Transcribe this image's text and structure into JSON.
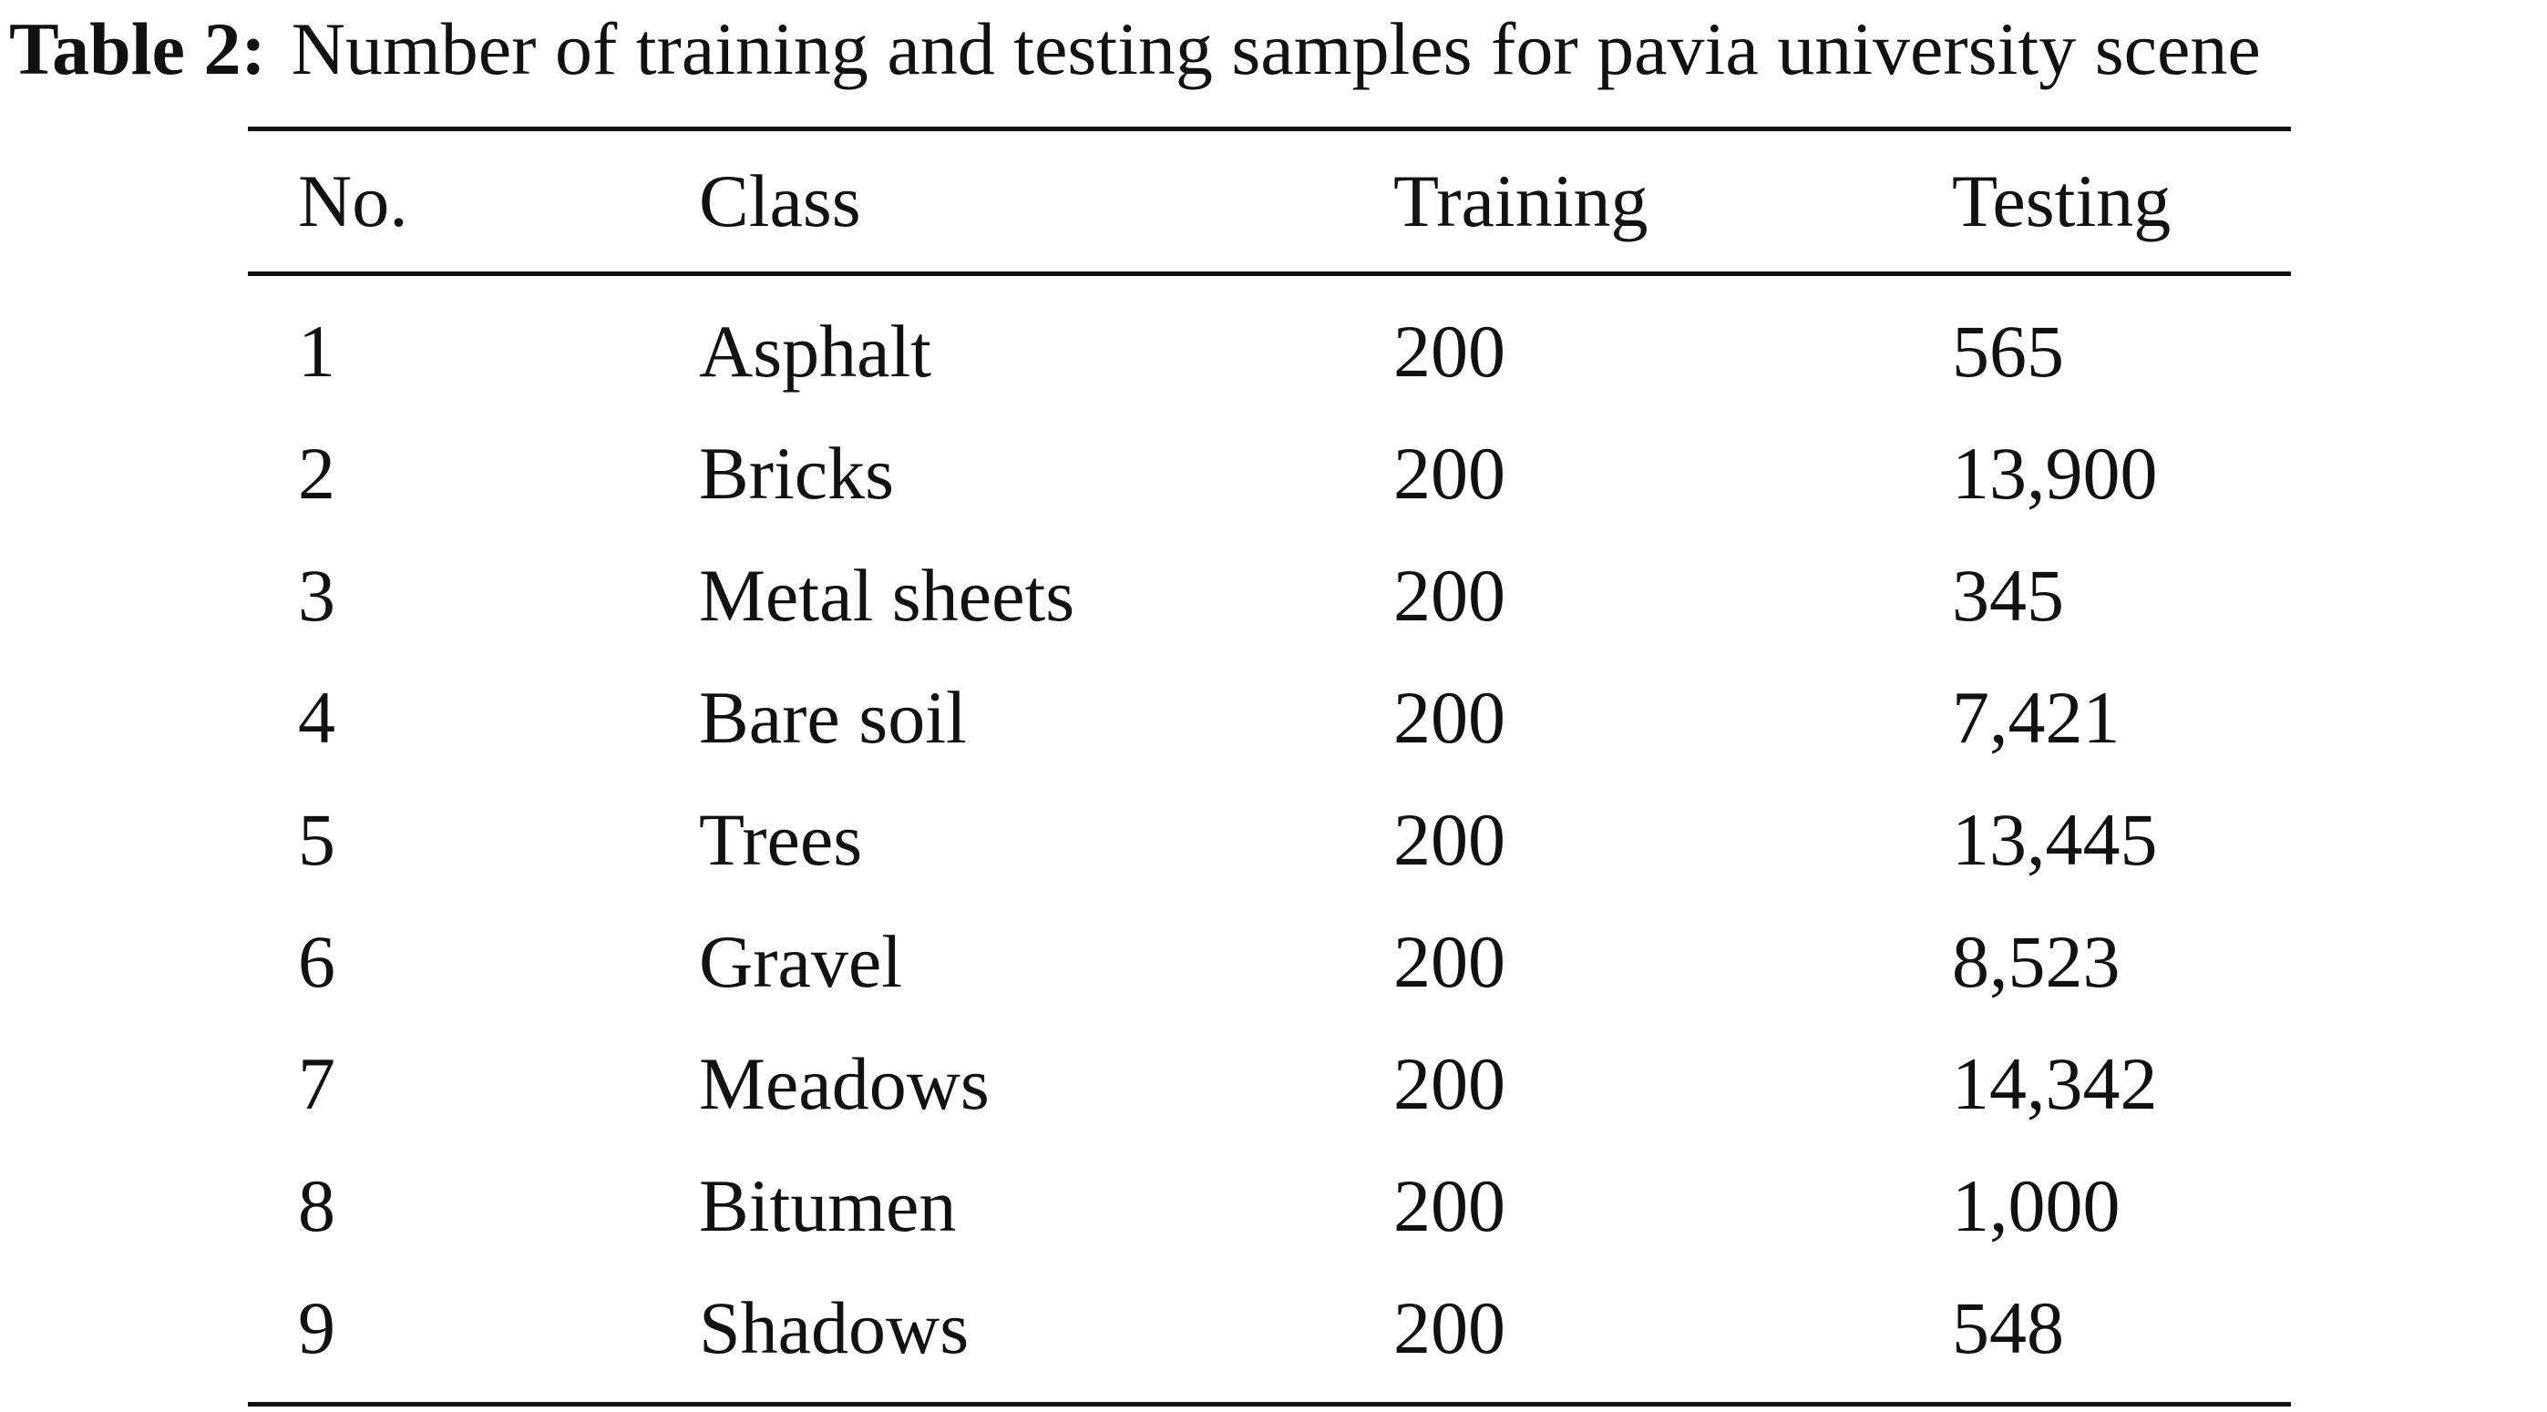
{
  "caption": {
    "label": "Table 2:",
    "text": "Number of training and testing samples for pavia university scene"
  },
  "table": {
    "headers": {
      "no": "No.",
      "class": "Class",
      "training": "Training",
      "testing": "Testing"
    },
    "rows": [
      {
        "no": "1",
        "class": "Asphalt",
        "training": "200",
        "testing": "565"
      },
      {
        "no": "2",
        "class": "Bricks",
        "training": "200",
        "testing": "13,900"
      },
      {
        "no": "3",
        "class": "Metal sheets",
        "training": "200",
        "testing": "345"
      },
      {
        "no": "4",
        "class": "Bare soil",
        "training": "200",
        "testing": "7,421"
      },
      {
        "no": "5",
        "class": "Trees",
        "training": "200",
        "testing": "13,445"
      },
      {
        "no": "6",
        "class": "Gravel",
        "training": "200",
        "testing": "8,523"
      },
      {
        "no": "7",
        "class": "Meadows",
        "training": "200",
        "testing": "14,342"
      },
      {
        "no": "8",
        "class": "Bitumen",
        "training": "200",
        "testing": "1,000"
      },
      {
        "no": "9",
        "class": "Shadows",
        "training": "200",
        "testing": "548"
      }
    ]
  }
}
